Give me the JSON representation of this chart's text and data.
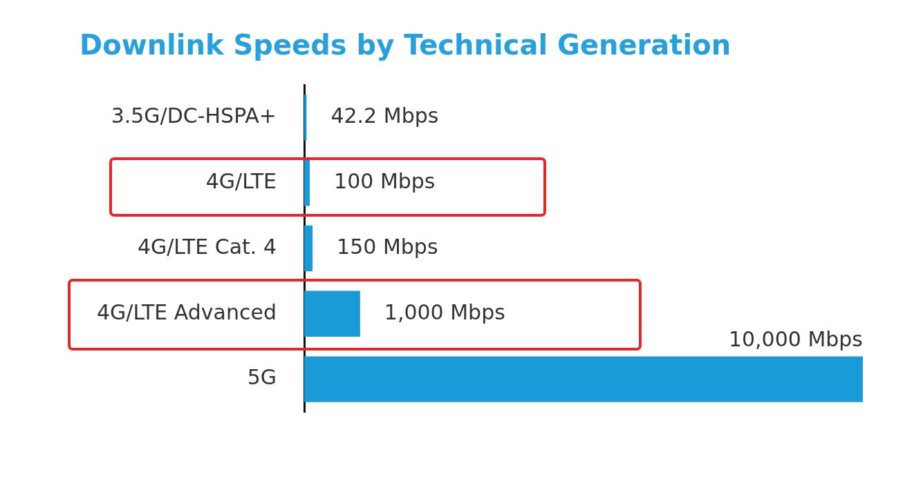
{
  "chart_data": {
    "type": "bar",
    "orientation": "horizontal",
    "title": "Downlink Speeds by Technical Generation",
    "categories": [
      "3.5G/DC-HSPA+",
      "4G/LTE",
      "4G/LTE Cat. 4",
      "4G/LTE Advanced",
      "5G"
    ],
    "values": [
      42.2,
      100,
      150,
      1000,
      10000
    ],
    "color": "#1a9ad6",
    "value_labels": [
      "42.2 Mbps",
      "100 Mbps",
      "150 Mbps",
      "1,000 Mbps",
      "10,000 Mbps"
    ],
    "tick_labels": "y",
    "legend": false
  }
}
